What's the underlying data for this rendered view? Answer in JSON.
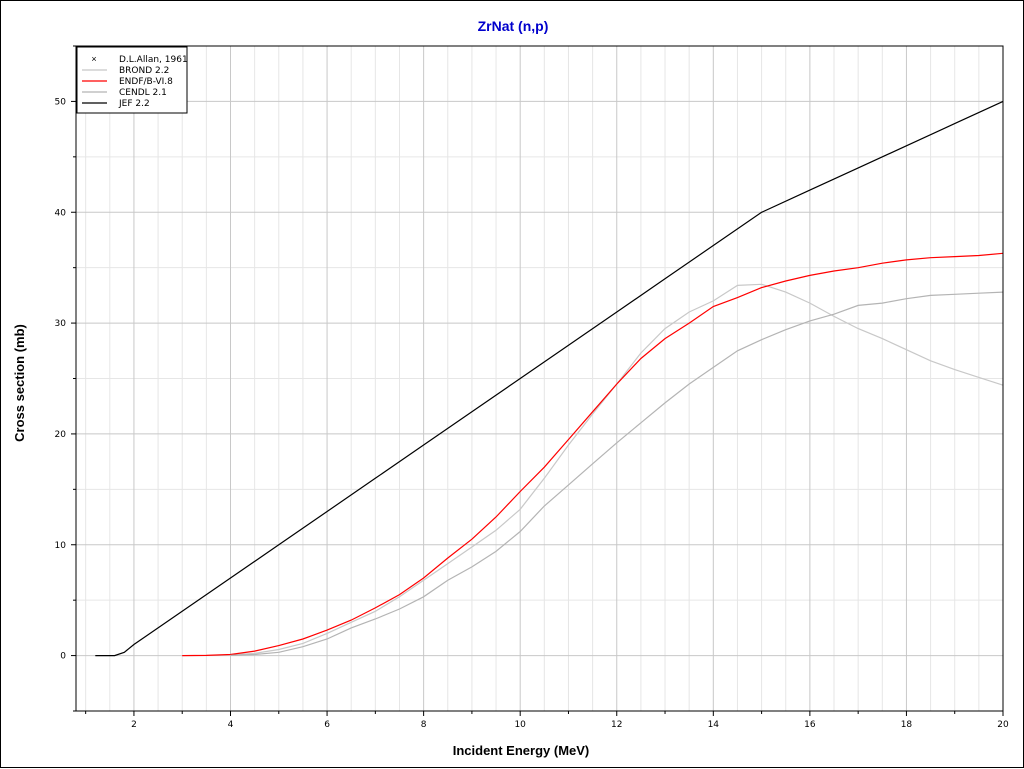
{
  "colors": {
    "title": "#0000cc",
    "grid_major": "#c8c8c8",
    "grid_minor": "#e6e6e6",
    "axis": "#000000"
  },
  "chart_data": {
    "type": "line",
    "title": "ZrNat (n,p)",
    "xlabel": "Incident Energy (MeV)",
    "ylabel": "Cross section (mb)",
    "xlim": [
      0.8,
      20
    ],
    "ylim": [
      -5,
      55
    ],
    "x_ticks": [
      "2",
      "4",
      "6",
      "8",
      "10",
      "12",
      "14",
      "16",
      "18",
      "20"
    ],
    "y_ticks": [
      "0",
      "10",
      "20",
      "30",
      "40",
      "50"
    ],
    "grid": true,
    "legend_position": "top-left",
    "series": [
      {
        "name": "D.L.Allan, 1961",
        "marker": "x",
        "color": "#000000",
        "points": []
      },
      {
        "name": "BROND 2.2",
        "color": "#c8c8c8",
        "points": [
          [
            4,
            0.05
          ],
          [
            4.5,
            0.2
          ],
          [
            5,
            0.55
          ],
          [
            5.5,
            1.1
          ],
          [
            6,
            2.0
          ],
          [
            6.5,
            3.0
          ],
          [
            7,
            4.0
          ],
          [
            7.5,
            5.3
          ],
          [
            8,
            6.8
          ],
          [
            8.5,
            8.3
          ],
          [
            9,
            9.8
          ],
          [
            9.5,
            11.3
          ],
          [
            10,
            13.2
          ],
          [
            10.5,
            16.0
          ],
          [
            11,
            19.0
          ],
          [
            11.5,
            21.8
          ],
          [
            12,
            24.5
          ],
          [
            12.5,
            27.3
          ],
          [
            13,
            29.5
          ],
          [
            13.5,
            31.0
          ],
          [
            14,
            32.0
          ],
          [
            14.5,
            33.4
          ],
          [
            15,
            33.5
          ],
          [
            15.5,
            32.8
          ],
          [
            16,
            31.8
          ],
          [
            16.5,
            30.6
          ],
          [
            17,
            29.5
          ],
          [
            17.5,
            28.6
          ],
          [
            18,
            27.6
          ],
          [
            18.5,
            26.6
          ],
          [
            19,
            25.8
          ],
          [
            19.5,
            25.1
          ],
          [
            20,
            24.4
          ]
        ]
      },
      {
        "name": "ENDF/B-VI.8",
        "color": "#ff0000",
        "points": [
          [
            3,
            0.0
          ],
          [
            3.5,
            0.02
          ],
          [
            4,
            0.1
          ],
          [
            4.5,
            0.4
          ],
          [
            5,
            0.9
          ],
          [
            5.5,
            1.5
          ],
          [
            6,
            2.3
          ],
          [
            6.5,
            3.2
          ],
          [
            7,
            4.3
          ],
          [
            7.5,
            5.5
          ],
          [
            8,
            7.0
          ],
          [
            8.5,
            8.8
          ],
          [
            9,
            10.5
          ],
          [
            9.5,
            12.5
          ],
          [
            10,
            14.8
          ],
          [
            10.5,
            17.0
          ],
          [
            11,
            19.5
          ],
          [
            11.5,
            22.0
          ],
          [
            12,
            24.5
          ],
          [
            12.5,
            26.8
          ],
          [
            13,
            28.6
          ],
          [
            13.5,
            30.0
          ],
          [
            14,
            31.5
          ],
          [
            14.5,
            32.3
          ],
          [
            15,
            33.2
          ],
          [
            15.5,
            33.8
          ],
          [
            16,
            34.3
          ],
          [
            16.5,
            34.7
          ],
          [
            17,
            35.0
          ],
          [
            17.5,
            35.4
          ],
          [
            18,
            35.7
          ],
          [
            18.5,
            35.9
          ],
          [
            19,
            36.0
          ],
          [
            19.5,
            36.1
          ],
          [
            20,
            36.3
          ]
        ]
      },
      {
        "name": "CENDL 2.1",
        "color": "#b4b4b4",
        "points": [
          [
            4,
            0.02
          ],
          [
            4.5,
            0.1
          ],
          [
            5,
            0.3
          ],
          [
            5.5,
            0.8
          ],
          [
            6,
            1.5
          ],
          [
            6.5,
            2.5
          ],
          [
            7,
            3.3
          ],
          [
            7.5,
            4.2
          ],
          [
            8,
            5.3
          ],
          [
            8.5,
            6.8
          ],
          [
            9,
            8.0
          ],
          [
            9.5,
            9.4
          ],
          [
            10,
            11.2
          ],
          [
            10.5,
            13.5
          ],
          [
            11,
            15.4
          ],
          [
            11.5,
            17.3
          ],
          [
            12,
            19.2
          ],
          [
            12.5,
            21.0
          ],
          [
            13,
            22.8
          ],
          [
            13.5,
            24.5
          ],
          [
            14,
            26.0
          ],
          [
            14.5,
            27.5
          ],
          [
            15,
            28.5
          ],
          [
            15.5,
            29.4
          ],
          [
            16,
            30.2
          ],
          [
            16.5,
            30.8
          ],
          [
            17,
            31.6
          ],
          [
            17.5,
            31.8
          ],
          [
            18,
            32.2
          ],
          [
            18.5,
            32.5
          ],
          [
            19,
            32.6
          ],
          [
            19.5,
            32.7
          ],
          [
            20,
            32.8
          ]
        ]
      },
      {
        "name": "JEF 2.2",
        "color": "#000000",
        "points": [
          [
            1.2,
            0
          ],
          [
            1.6,
            0
          ],
          [
            1.8,
            0.3
          ],
          [
            2,
            1.0
          ],
          [
            3,
            4.0
          ],
          [
            4,
            7.0
          ],
          [
            5,
            10.0
          ],
          [
            6,
            13.0
          ],
          [
            7,
            16.0
          ],
          [
            8,
            19.0
          ],
          [
            9,
            22.0
          ],
          [
            10,
            25.0
          ],
          [
            11,
            28.0
          ],
          [
            12,
            31.0
          ],
          [
            13,
            34.0
          ],
          [
            14,
            37.0
          ],
          [
            15,
            40.0
          ],
          [
            16,
            42.0
          ],
          [
            17,
            44.0
          ],
          [
            18,
            46.0
          ],
          [
            19,
            48.0
          ],
          [
            20,
            50.0
          ]
        ]
      }
    ]
  }
}
